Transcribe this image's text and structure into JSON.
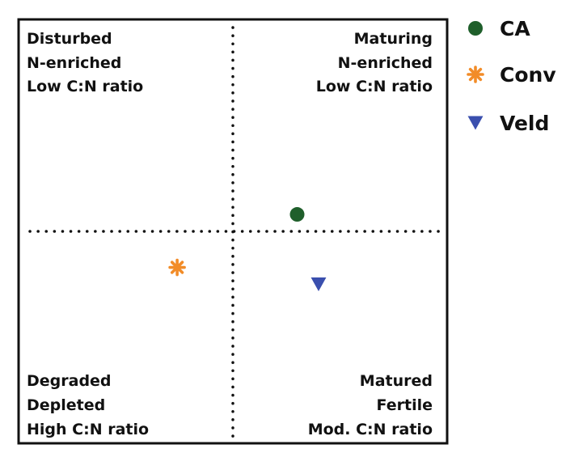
{
  "chart_data": {
    "type": "scatter",
    "title": "",
    "xlabel": "",
    "ylabel": "",
    "xlim": [
      -1,
      1
    ],
    "ylim": [
      -1,
      1
    ],
    "grid": false,
    "reference_lines": {
      "x": 0,
      "y": 0,
      "style": "dotted"
    },
    "legend_position": "right",
    "quadrants": {
      "top_left": [
        "Disturbed",
        "N-enriched",
        "Low C:N ratio"
      ],
      "top_right": [
        "Maturing",
        "N-enriched",
        "Low C:N ratio"
      ],
      "bottom_left": [
        "Degraded",
        "Depleted",
        "High C:N ratio"
      ],
      "bottom_right": [
        "Matured",
        "Fertile",
        "Mod. C:N ratio"
      ]
    },
    "series": [
      {
        "name": "CA",
        "marker": "circle",
        "color": "#1f5f2b",
        "x": 0.3,
        "y": 0.08
      },
      {
        "name": "Conv",
        "marker": "asterisk",
        "color": "#f28c28",
        "x": -0.26,
        "y": -0.17
      },
      {
        "name": "Veld",
        "marker": "triangle-down",
        "color": "#3a4fae",
        "x": 0.4,
        "y": -0.25
      }
    ]
  }
}
